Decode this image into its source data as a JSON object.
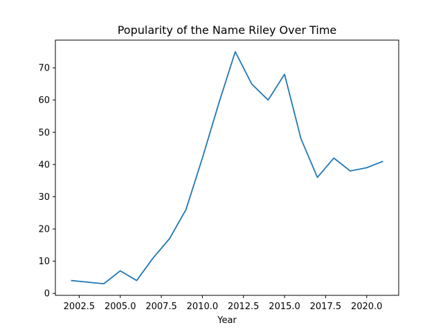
{
  "chart_data": {
    "type": "line",
    "title": "Popularity of the Name Riley Over Time",
    "xlabel": "Year",
    "ylabel": "",
    "xlim": [
      2001.05,
      2021.95
    ],
    "ylim": [
      -0.6,
      78.6
    ],
    "xticks": [
      2002.5,
      2005.0,
      2007.5,
      2010.0,
      2012.5,
      2015.0,
      2017.5,
      2020.0
    ],
    "xtick_labels": [
      "2002.5",
      "2005.0",
      "2007.5",
      "2010.0",
      "2012.5",
      "2015.0",
      "2017.5",
      "2020.0"
    ],
    "yticks": [
      0,
      10,
      20,
      30,
      40,
      50,
      60,
      70
    ],
    "ytick_labels": [
      "0",
      "10",
      "20",
      "30",
      "40",
      "50",
      "60",
      "70"
    ],
    "grid": false,
    "series": [
      {
        "color": "#1f77b4",
        "x": [
          2002,
          2003,
          2004,
          2005,
          2006,
          2007,
          2008,
          2009,
          2010,
          2011,
          2012,
          2013,
          2014,
          2015,
          2016,
          2017,
          2018,
          2019,
          2020,
          2021
        ],
        "values": [
          4,
          3.5,
          3,
          7,
          4,
          11,
          17,
          26,
          42,
          59,
          75,
          65,
          60,
          68,
          48,
          36,
          42,
          38,
          39,
          41
        ]
      }
    ]
  }
}
